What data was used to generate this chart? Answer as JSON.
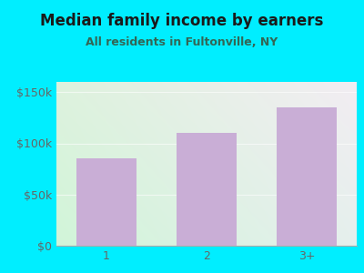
{
  "title": "Median family income by earners",
  "subtitle": "All residents in Fultonville, NY",
  "categories": [
    "1",
    "2",
    "3+"
  ],
  "values": [
    85000,
    110000,
    135000
  ],
  "bar_color": "#c9aed6",
  "background_outer": "#00eeff",
  "background_inner_topleft": "#ddf0dd",
  "background_inner_center": "#f0f8f0",
  "background_inner_bottomright": "#ddeeff",
  "yticks": [
    0,
    50000,
    100000,
    150000
  ],
  "ytick_labels": [
    "$0",
    "$50k",
    "$100k",
    "$150k"
  ],
  "ylim": [
    0,
    160000
  ],
  "title_color": "#1a1a1a",
  "subtitle_color": "#336655",
  "tick_color": "#666666",
  "title_fontsize": 12,
  "subtitle_fontsize": 9,
  "axis_label_fontsize": 9
}
